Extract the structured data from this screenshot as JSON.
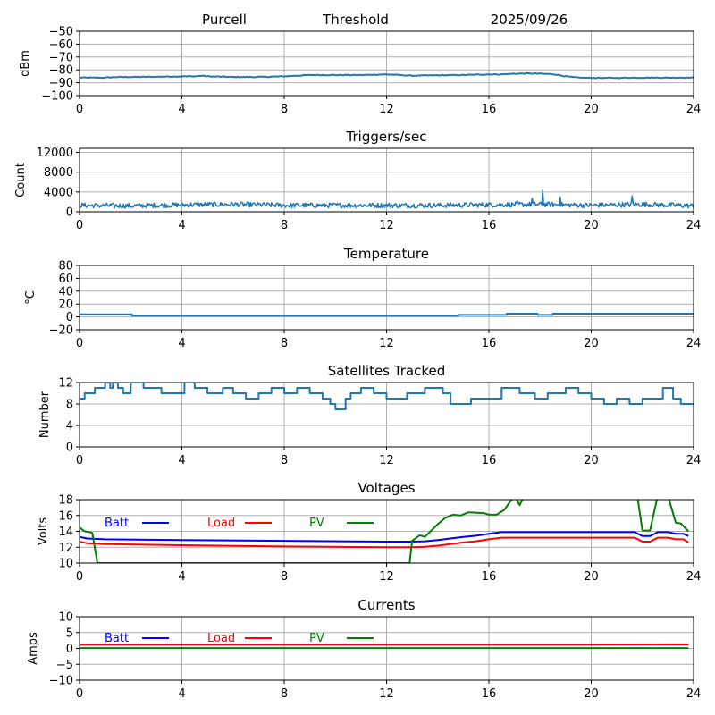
{
  "header": {
    "station": "Purcell",
    "mode": "Threshold",
    "date": "2025/09/26"
  },
  "chart_data": [
    {
      "id": "signal",
      "type": "line",
      "title": "",
      "xlabel": "",
      "ylabel": "dBm",
      "xlim": [
        0,
        24
      ],
      "ylim": [
        -100,
        -50
      ],
      "xticks": [
        "0",
        "4",
        "8",
        "12",
        "16",
        "20",
        "24"
      ],
      "yticks": [
        "-50",
        "-60",
        "-70",
        "-80",
        "-90",
        "-100"
      ],
      "ytick_values": [
        -50,
        -60,
        -70,
        -80,
        -90,
        -100
      ],
      "grid": true,
      "series": [
        {
          "name": "signal",
          "color": "#1f77b4",
          "x": [
            0,
            1,
            1.5,
            2,
            3,
            4,
            4.5,
            4.8,
            5,
            6,
            7,
            8,
            8.5,
            9,
            10,
            11,
            12,
            12.5,
            13,
            14,
            15,
            16,
            16.5,
            17,
            17.5,
            18,
            18.3,
            18.6,
            19,
            19.5,
            20,
            21,
            22,
            23,
            24
          ],
          "y": [
            -86,
            -86,
            -85.5,
            -85.5,
            -85.3,
            -85,
            -85,
            -84.5,
            -85,
            -85.5,
            -85.5,
            -85,
            -84.5,
            -84,
            -84,
            -84,
            -83.5,
            -84,
            -84.5,
            -84.2,
            -84,
            -83.5,
            -83.5,
            -83,
            -82.8,
            -83,
            -83.2,
            -83.5,
            -85,
            -86,
            -86.2,
            -86.2,
            -86,
            -86,
            -86
          ]
        }
      ]
    },
    {
      "id": "triggers",
      "type": "line",
      "title": "Triggers/sec",
      "xlabel": "",
      "ylabel": "Count",
      "xlim": [
        0,
        24
      ],
      "ylim": [
        0,
        12800
      ],
      "xticks": [
        "0",
        "4",
        "8",
        "12",
        "16",
        "20",
        "24"
      ],
      "yticks": [
        "0",
        "4000",
        "8000",
        "12000"
      ],
      "ytick_values": [
        0,
        4000,
        8000,
        12000
      ],
      "grid": true,
      "series": [
        {
          "name": "triggers",
          "color": "#1f77b4",
          "baseline": 1300,
          "noise": 500,
          "spikes": [
            [
              17.1,
              2200
            ],
            [
              17.7,
              2700
            ],
            [
              18.1,
              4400
            ],
            [
              18.8,
              3000
            ],
            [
              21.6,
              3200
            ]
          ],
          "x": [
            0,
            2,
            4,
            6,
            8,
            10,
            12,
            14,
            16,
            18,
            20,
            22,
            24
          ],
          "y": [
            1300,
            1200,
            1400,
            1500,
            1300,
            1300,
            1300,
            1300,
            1400,
            1500,
            1300,
            1500,
            1200
          ]
        }
      ]
    },
    {
      "id": "temperature",
      "type": "line",
      "title": "Temperature",
      "xlabel": "",
      "ylabel": "°C",
      "xlim": [
        0,
        24
      ],
      "ylim": [
        -20,
        80
      ],
      "xticks": [
        "0",
        "4",
        "8",
        "12",
        "16",
        "20",
        "24"
      ],
      "yticks": [
        "80",
        "60",
        "40",
        "20",
        "0",
        "-20"
      ],
      "ytick_values": [
        80,
        60,
        40,
        20,
        0,
        -20
      ],
      "grid": true,
      "series": [
        {
          "name": "temperature",
          "color": "#1f77b4",
          "x": [
            0,
            2.05,
            2.05,
            14.8,
            14.8,
            16.7,
            16.7,
            17.9,
            17.9,
            18.5,
            18.5,
            24
          ],
          "y": [
            4,
            4,
            2,
            2,
            3,
            3,
            5,
            5,
            3,
            3,
            5,
            5
          ]
        }
      ]
    },
    {
      "id": "satellites",
      "type": "line",
      "title": "Satellites Tracked",
      "xlabel": "",
      "ylabel": "Number",
      "xlim": [
        0,
        24
      ],
      "ylim": [
        0,
        12
      ],
      "xticks": [
        "0",
        "4",
        "8",
        "12",
        "16",
        "20",
        "24"
      ],
      "yticks": [
        "0",
        "4",
        "8",
        "12"
      ],
      "ytick_values": [
        0,
        4,
        8,
        12
      ],
      "grid": true,
      "series": [
        {
          "name": "satellites",
          "color": "#1f77b4",
          "x": [
            0,
            0.2,
            0.2,
            0.6,
            0.6,
            1.0,
            1.0,
            1.2,
            1.2,
            1.3,
            1.3,
            1.5,
            1.5,
            1.7,
            1.7,
            2.0,
            2.0,
            2.5,
            2.5,
            3.0,
            3.0,
            3.2,
            3.2,
            4.1,
            4.1,
            4.5,
            4.5,
            5.0,
            5.0,
            5.6,
            5.6,
            6.0,
            6.0,
            6.5,
            6.5,
            7.0,
            7.0,
            7.5,
            7.5,
            8.0,
            8.0,
            8.5,
            8.5,
            9.0,
            9.0,
            9.5,
            9.5,
            9.8,
            9.8,
            10.0,
            10.0,
            10.4,
            10.4,
            10.6,
            10.6,
            11.0,
            11.0,
            11.5,
            11.5,
            12.0,
            12.0,
            12.8,
            12.8,
            13.5,
            13.5,
            14.2,
            14.2,
            14.5,
            14.5,
            15.3,
            15.3,
            15.8,
            15.8,
            16.5,
            16.5,
            17.2,
            17.2,
            17.8,
            17.8,
            18.3,
            18.3,
            19.0,
            19.0,
            19.5,
            19.5,
            20.0,
            20.0,
            20.5,
            20.5,
            21.0,
            21.0,
            21.5,
            21.5,
            22.0,
            22.0,
            22.8,
            22.8,
            23.2,
            23.2,
            23.5,
            23.5,
            24.0
          ],
          "y": [
            9,
            9,
            10,
            10,
            11,
            11,
            12,
            12,
            11,
            11,
            12,
            12,
            11,
            11,
            10,
            10,
            12,
            12,
            11,
            11,
            11,
            11,
            10,
            10,
            12,
            12,
            11,
            11,
            10,
            10,
            11,
            11,
            10,
            10,
            9,
            9,
            10,
            10,
            11,
            11,
            10,
            10,
            11,
            11,
            10,
            10,
            9,
            9,
            8,
            8,
            7,
            7,
            9,
            9,
            10,
            10,
            11,
            11,
            10,
            10,
            9,
            9,
            10,
            10,
            11,
            11,
            10,
            10,
            8,
            8,
            9,
            9,
            9,
            9,
            11,
            11,
            10,
            10,
            9,
            9,
            10,
            10,
            11,
            11,
            10,
            10,
            9,
            9,
            8,
            8,
            9,
            9,
            8,
            8,
            9,
            9,
            11,
            11,
            9,
            9,
            8,
            8
          ]
        }
      ]
    },
    {
      "id": "voltages",
      "type": "line",
      "title": "Voltages",
      "xlabel": "",
      "ylabel": "Volts",
      "xlim": [
        0,
        24
      ],
      "ylim": [
        10,
        18
      ],
      "xticks": [
        "0",
        "4",
        "8",
        "12",
        "16",
        "20",
        "24"
      ],
      "yticks": [
        "10",
        "12",
        "14",
        "16",
        "18"
      ],
      "ytick_values": [
        10,
        12,
        14,
        16,
        18
      ],
      "grid": true,
      "legend": {
        "placement": "upper-left-inline",
        "entries": [
          {
            "label": "Batt",
            "color": "#0000ff"
          },
          {
            "label": "Load",
            "color": "#ff0000"
          },
          {
            "label": "PV",
            "color": "#008000"
          }
        ]
      },
      "series": [
        {
          "name": "Batt",
          "color": "#0000ff",
          "x": [
            0,
            0.3,
            1,
            4,
            8,
            12,
            13,
            13.5,
            14,
            15,
            15.5,
            16,
            16.5,
            17,
            20,
            21.7,
            22,
            22.3,
            22.6,
            23,
            23.3,
            23.6,
            23.8
          ],
          "y": [
            13.3,
            13.1,
            13.0,
            12.9,
            12.8,
            12.7,
            12.7,
            12.75,
            12.9,
            13.3,
            13.45,
            13.7,
            13.9,
            13.9,
            13.9,
            13.9,
            13.4,
            13.4,
            13.9,
            13.9,
            13.7,
            13.7,
            13.4
          ]
        },
        {
          "name": "Load",
          "color": "#ff0000",
          "x": [
            0,
            0.3,
            1,
            4,
            8,
            12,
            13,
            13.5,
            14,
            15,
            15.5,
            16,
            16.5,
            17,
            20,
            21.7,
            22,
            22.3,
            22.6,
            23,
            23.3,
            23.6,
            23.8
          ],
          "y": [
            12.7,
            12.5,
            12.4,
            12.25,
            12.1,
            12.0,
            12.0,
            12.05,
            12.2,
            12.6,
            12.75,
            13.0,
            13.2,
            13.2,
            13.2,
            13.2,
            12.7,
            12.7,
            13.2,
            13.2,
            13.0,
            13.0,
            12.6
          ]
        },
        {
          "name": "PV",
          "color": "#008000",
          "x": [
            0,
            0.2,
            0.4,
            0.5,
            0.7,
            12.9,
            13.0,
            13.3,
            13.5,
            14.0,
            14.3,
            14.6,
            14.9,
            15.2,
            15.8,
            16.0,
            16.3,
            16.6,
            16.8,
            17.0,
            17.2,
            17.4,
            21.8,
            22.0,
            22.3,
            22.6,
            23.0,
            23.3,
            23.5,
            23.8
          ],
          "y": [
            14.5,
            14.0,
            13.9,
            13.8,
            10.0,
            10.0,
            12.8,
            13.5,
            13.3,
            14.9,
            15.7,
            16.1,
            16.0,
            16.4,
            16.3,
            16.1,
            16.1,
            16.7,
            17.6,
            18.5,
            17.3,
            18.6,
            18.5,
            14.1,
            14.1,
            18.5,
            18.5,
            15.1,
            15.0,
            14.0
          ]
        }
      ]
    },
    {
      "id": "currents",
      "type": "line",
      "title": "Currents",
      "xlabel": "",
      "ylabel": "Amps",
      "xlim": [
        0,
        24
      ],
      "ylim": [
        -10,
        10
      ],
      "xticks": [
        "0",
        "4",
        "8",
        "12",
        "16",
        "20",
        "24"
      ],
      "yticks": [
        "10",
        "5",
        "0",
        "-5",
        "-10"
      ],
      "ytick_values": [
        10,
        5,
        0,
        -5,
        -10
      ],
      "grid": true,
      "legend": {
        "placement": "upper-left-inline",
        "entries": [
          {
            "label": "Batt",
            "color": "#0000ff"
          },
          {
            "label": "Load",
            "color": "#ff0000"
          },
          {
            "label": "PV",
            "color": "#008000"
          }
        ]
      },
      "series": [
        {
          "name": "Batt",
          "color": "#0000ff",
          "x": [
            0,
            23.8
          ],
          "y": [
            1.2,
            1.2
          ]
        },
        {
          "name": "Load",
          "color": "#ff0000",
          "x": [
            0,
            4,
            8,
            12,
            16,
            20,
            23.8
          ],
          "y": [
            1.2,
            1.2,
            1.2,
            1.2,
            1.2,
            1.2,
            1.3
          ]
        },
        {
          "name": "PV",
          "color": "#008000",
          "x": [
            0,
            23.8
          ],
          "y": [
            0.1,
            0.1
          ]
        }
      ]
    }
  ]
}
